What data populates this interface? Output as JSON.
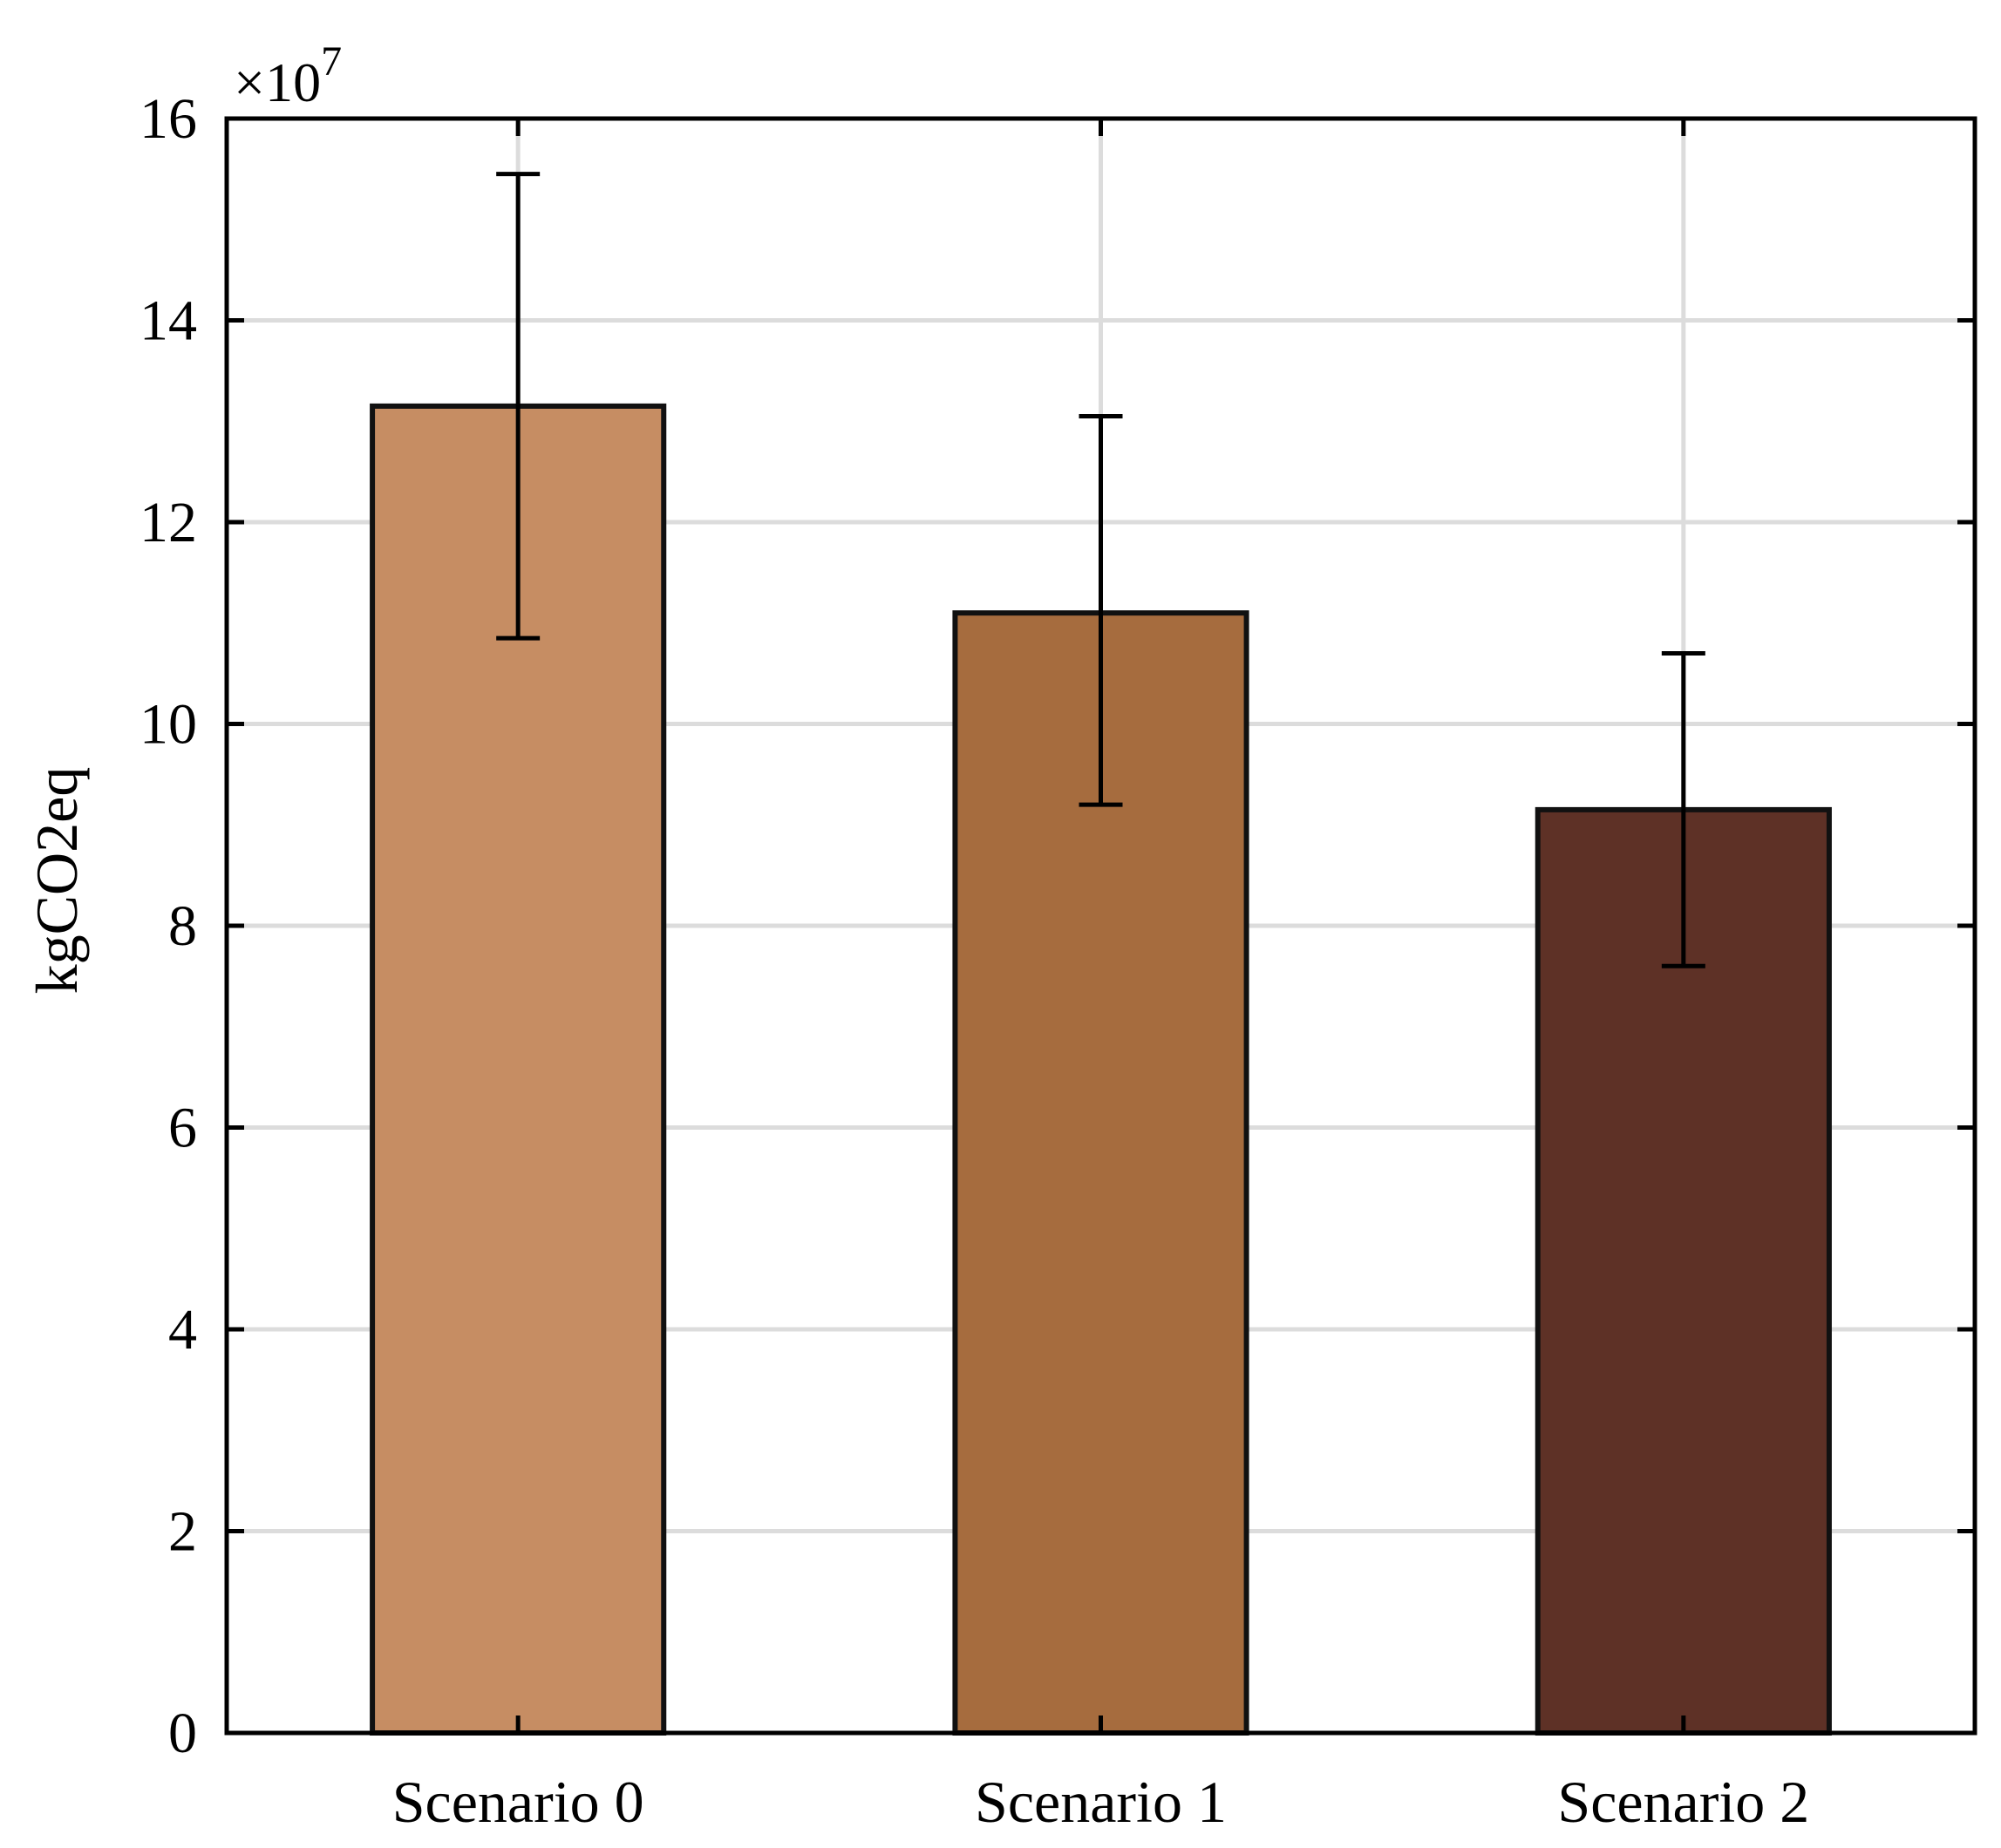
{
  "chart_data": {
    "type": "bar",
    "title": "",
    "xlabel": "",
    "ylabel": "kgCO2eq",
    "y_exponent_label": "×10",
    "y_exponent_power": "7",
    "ylim": [
      0,
      16
    ],
    "yticks": [
      0,
      2,
      4,
      6,
      8,
      10,
      12,
      14,
      16
    ],
    "ytick_labels": [
      "0",
      "2",
      "4",
      "6",
      "8",
      "10",
      "12",
      "14",
      "16"
    ],
    "grid": true,
    "categories": [
      "Scenario 0",
      "Scenario 1",
      "Scenario 2"
    ],
    "values": [
      13.15,
      11.1,
      9.15
    ],
    "error_low": [
      10.85,
      9.2,
      7.6
    ],
    "error_high": [
      15.45,
      13.05,
      10.7
    ],
    "colors": [
      "#C68D63",
      "#A66C3E",
      "#5E3126"
    ]
  }
}
